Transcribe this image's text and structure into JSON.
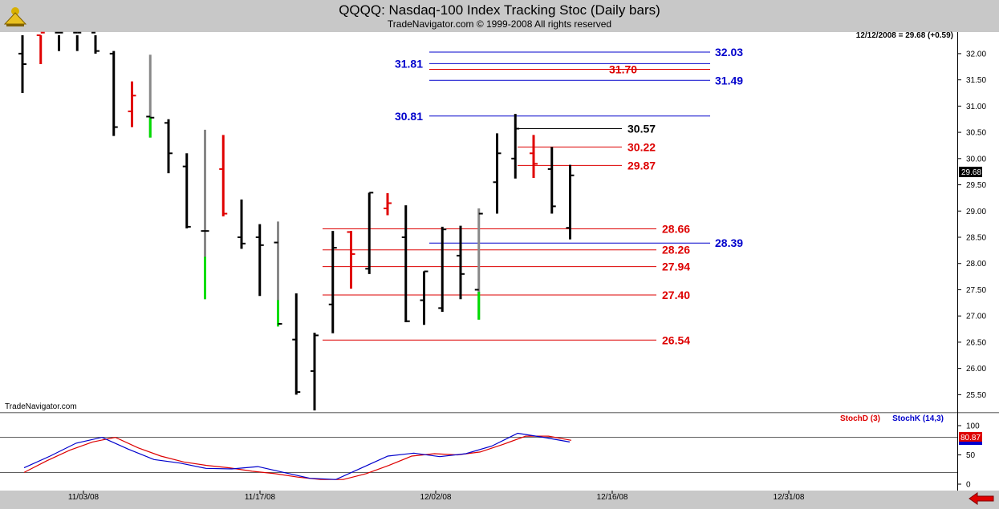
{
  "header": {
    "title": "QQQQ:  Nasdaq-100 Index Tracking Stoc  (Daily bars)",
    "copyright": "TradeNavigator.com © 1999-2008 All rights reserved"
  },
  "price_panel": {
    "last_quote": "12/12/2008 = 29.68 (+0.59)",
    "last_price_tag": "29.68",
    "watermark": "TradeNavigator.com",
    "y_ticks": [
      "32.00",
      "31.50",
      "31.00",
      "30.50",
      "30.00",
      "29.50",
      "29.00",
      "28.50",
      "28.00",
      "27.50",
      "27.00",
      "26.50",
      "26.00",
      "25.50"
    ]
  },
  "indicator_panel": {
    "legend_d": "StochD (3)",
    "legend_k": "StochK (14,3)",
    "y_ticks": [
      "100",
      "50",
      "0"
    ],
    "value_tag": "80.87"
  },
  "x_ticks": [
    "11/03/08",
    "11/17/08",
    "12/02/08",
    "12/16/08",
    "12/31/08"
  ],
  "colors": {
    "up_bar": "#000000",
    "down_bar": "#e00000",
    "green_bar": "#00dd00",
    "gray_bar": "#888888",
    "blue_level": "#0000cc",
    "red_level": "#dd0000",
    "stoch_d": "#dd0000",
    "stoch_k": "#0000cc"
  },
  "chart_data": {
    "type": "ohlc",
    "ylim": [
      25.2,
      32.35
    ],
    "levels": [
      {
        "value": 32.03,
        "label": "32.03",
        "color": "blue"
      },
      {
        "value": 31.81,
        "label": "31.81",
        "color": "blue"
      },
      {
        "value": 31.7,
        "label": "31.70",
        "color": "red"
      },
      {
        "value": 31.49,
        "label": "31.49",
        "color": "blue"
      },
      {
        "value": 30.81,
        "label": "30.81",
        "color": "blue"
      },
      {
        "value": 30.57,
        "label": "30.57",
        "color": "black"
      },
      {
        "value": 30.22,
        "label": "30.22",
        "color": "red"
      },
      {
        "value": 29.87,
        "label": "29.87",
        "color": "red"
      },
      {
        "value": 28.66,
        "label": "28.66",
        "color": "red"
      },
      {
        "value": 28.39,
        "label": "28.39",
        "color": "blue"
      },
      {
        "value": 28.26,
        "label": "28.26",
        "color": "red"
      },
      {
        "value": 27.94,
        "label": "27.94",
        "color": "red"
      },
      {
        "value": 27.4,
        "label": "27.40",
        "color": "red"
      },
      {
        "value": 26.54,
        "label": "26.54",
        "color": "red"
      }
    ],
    "bars": [
      {
        "o": 32.0,
        "h": 32.4,
        "l": 31.25,
        "c": 31.8,
        "k": "up"
      },
      {
        "o": 32.35,
        "h": 32.4,
        "l": 31.8,
        "c": 32.4,
        "k": "dn"
      },
      {
        "o": 32.4,
        "h": 32.4,
        "l": 32.05,
        "c": 32.4,
        "k": "up"
      },
      {
        "o": 32.4,
        "h": 32.4,
        "l": 32.05,
        "c": 32.4,
        "k": "up"
      },
      {
        "o": 32.4,
        "h": 32.4,
        "l": 32.0,
        "c": 32.05,
        "k": "up"
      },
      {
        "o": 32.0,
        "h": 32.05,
        "l": 30.43,
        "c": 30.6,
        "k": "up"
      },
      {
        "o": 30.9,
        "h": 31.47,
        "l": 30.6,
        "c": 31.2,
        "k": "dn"
      },
      {
        "o": 30.8,
        "h": 31.98,
        "l": 30.4,
        "c": 30.78,
        "k": "gr"
      },
      {
        "o": 30.68,
        "h": 30.75,
        "l": 29.72,
        "c": 30.1,
        "k": "up"
      },
      {
        "o": 29.85,
        "h": 30.1,
        "l": 28.67,
        "c": 28.7,
        "k": "up"
      },
      {
        "o": 28.62,
        "h": 30.55,
        "l": 27.32,
        "c": 28.62,
        "k": "gr"
      },
      {
        "o": 29.8,
        "h": 30.45,
        "l": 28.9,
        "c": 28.95,
        "k": "dn"
      },
      {
        "o": 28.5,
        "h": 29.22,
        "l": 28.28,
        "c": 28.38,
        "k": "up"
      },
      {
        "o": 28.5,
        "h": 28.75,
        "l": 27.38,
        "c": 28.35,
        "k": "up"
      },
      {
        "o": 28.4,
        "h": 28.8,
        "l": 26.8,
        "c": 26.85,
        "k": "gr"
      },
      {
        "o": 26.55,
        "h": 27.43,
        "l": 25.5,
        "c": 25.55,
        "k": "up"
      },
      {
        "o": 25.95,
        "h": 26.68,
        "l": 25.2,
        "c": 26.63,
        "k": "up"
      },
      {
        "o": 27.22,
        "h": 28.62,
        "l": 26.67,
        "c": 28.3,
        "k": "up"
      },
      {
        "o": 28.6,
        "h": 28.62,
        "l": 27.52,
        "c": 28.18,
        "k": "dn"
      },
      {
        "o": 27.9,
        "h": 29.35,
        "l": 27.8,
        "c": 29.35,
        "k": "up"
      },
      {
        "o": 29.05,
        "h": 29.34,
        "l": 28.92,
        "c": 29.15,
        "k": "dn"
      },
      {
        "o": 28.5,
        "h": 29.11,
        "l": 26.88,
        "c": 26.9,
        "k": "up"
      },
      {
        "o": 27.3,
        "h": 27.85,
        "l": 26.83,
        "c": 27.85,
        "k": "up"
      },
      {
        "o": 27.15,
        "h": 28.7,
        "l": 27.08,
        "c": 28.65,
        "k": "up"
      },
      {
        "o": 28.15,
        "h": 28.72,
        "l": 27.32,
        "c": 27.8,
        "k": "up"
      },
      {
        "o": 27.5,
        "h": 29.05,
        "l": 26.93,
        "c": 28.95,
        "k": "gr"
      },
      {
        "o": 29.55,
        "h": 30.48,
        "l": 28.95,
        "c": 30.1,
        "k": "up"
      },
      {
        "o": 30.0,
        "h": 30.85,
        "l": 29.62,
        "c": 30.57,
        "k": "up"
      },
      {
        "o": 30.1,
        "h": 30.45,
        "l": 29.63,
        "c": 29.9,
        "k": "dn"
      },
      {
        "o": 29.8,
        "h": 30.22,
        "l": 28.95,
        "c": 29.09,
        "k": "up"
      },
      {
        "o": 28.68,
        "h": 29.88,
        "l": 28.46,
        "c": 29.68,
        "k": "up"
      }
    ],
    "stoch_d": [
      20,
      40,
      58,
      72,
      80,
      62,
      48,
      38,
      32,
      28,
      22,
      18,
      12,
      8,
      8,
      18,
      32,
      48,
      52,
      50,
      55,
      68,
      82,
      82,
      75
    ],
    "stoch_k": [
      28,
      48,
      70,
      80,
      60,
      42,
      36,
      27,
      26,
      30,
      20,
      10,
      8,
      28,
      48,
      53,
      47,
      52,
      65,
      87,
      80,
      72
    ]
  }
}
